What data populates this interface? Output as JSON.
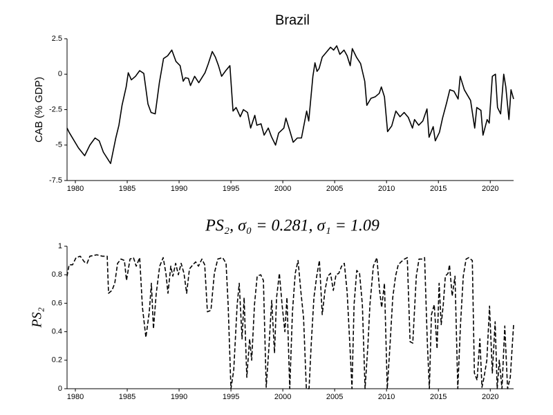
{
  "chart_data": [
    {
      "type": "line",
      "title": "Brazil",
      "ylabel": "CAB (% GDP)",
      "color": "#000000",
      "linestyle": "solid",
      "xlim": [
        1979.2,
        2022.25
      ],
      "xticks": [
        1980,
        1985,
        1990,
        1995,
        2000,
        2005,
        2010,
        2015,
        2020
      ],
      "ylim": [
        -7.5,
        2.5
      ],
      "yticks": [
        2.5,
        0,
        -2.5,
        -5,
        -7.5
      ],
      "x": [
        1979.2,
        1979.4,
        1980.3,
        1980.9,
        1981.4,
        1981.9,
        1982.3,
        1982.7,
        1983.4,
        1983.9,
        1984.2,
        1984.5,
        1984.9,
        1985.1,
        1985.4,
        1985.8,
        1986.2,
        1986.6,
        1987.0,
        1987.3,
        1987.7,
        1988.1,
        1988.5,
        1988.9,
        1989.3,
        1989.7,
        1990.1,
        1990.4,
        1990.6,
        1990.9,
        1991.1,
        1991.5,
        1991.9,
        1992.5,
        1992.8,
        1993.2,
        1993.5,
        1993.8,
        1994.1,
        1994.5,
        1994.9,
        1995.2,
        1995.5,
        1995.9,
        1996.2,
        1996.6,
        1996.9,
        1997.3,
        1997.5,
        1997.9,
        1998.2,
        1998.6,
        1998.9,
        1999.3,
        1999.6,
        2000.1,
        2000.3,
        2000.7,
        2001.0,
        2001.4,
        2001.8,
        2002.3,
        2002.5,
        2002.9,
        2003.1,
        2003.3,
        2003.5,
        2003.8,
        2004.2,
        2004.6,
        2004.9,
        2005.2,
        2005.5,
        2005.9,
        2006.2,
        2006.5,
        2006.7,
        2007.1,
        2007.5,
        2007.9,
        2008.1,
        2008.5,
        2008.9,
        2009.3,
        2009.5,
        2009.8,
        2010.1,
        2010.5,
        2010.9,
        2011.3,
        2011.7,
        2012.1,
        2012.5,
        2012.7,
        2013.1,
        2013.5,
        2013.9,
        2014.1,
        2014.5,
        2014.7,
        2015.1,
        2015.4,
        2015.8,
        2016.1,
        2016.5,
        2016.9,
        2017.1,
        2017.5,
        2017.9,
        2018.1,
        2018.5,
        2018.7,
        2019.1,
        2019.3,
        2019.7,
        2019.9,
        2020.2,
        2020.5,
        2020.7,
        2021.0,
        2021.3,
        2021.5,
        2021.8,
        2022.0,
        2022.25
      ],
      "values": [
        -3.8,
        -4.1,
        -5.2,
        -5.75,
        -5.0,
        -4.5,
        -4.7,
        -5.5,
        -6.3,
        -4.5,
        -3.6,
        -2.2,
        -0.9,
        0.1,
        -0.4,
        -0.15,
        0.25,
        0.05,
        -2.1,
        -2.7,
        -2.8,
        -0.6,
        1.1,
        1.3,
        1.7,
        0.9,
        0.6,
        -0.5,
        -0.25,
        -0.3,
        -0.8,
        -0.15,
        -0.6,
        0.1,
        0.7,
        1.6,
        1.2,
        0.6,
        -0.15,
        0.25,
        0.6,
        -2.6,
        -2.35,
        -3.0,
        -2.5,
        -2.7,
        -3.8,
        -2.9,
        -3.6,
        -3.5,
        -4.3,
        -3.8,
        -4.4,
        -5.0,
        -4.15,
        -3.8,
        -3.1,
        -4.05,
        -4.8,
        -4.5,
        -4.5,
        -2.6,
        -3.3,
        -0.15,
        0.8,
        0.2,
        0.4,
        1.2,
        1.55,
        1.9,
        1.7,
        2.0,
        1.4,
        1.7,
        1.3,
        0.6,
        1.8,
        1.2,
        0.75,
        -0.5,
        -2.2,
        -1.7,
        -1.6,
        -1.35,
        -0.9,
        -1.6,
        -4.05,
        -3.65,
        -2.6,
        -3.0,
        -2.7,
        -3.05,
        -3.8,
        -3.2,
        -3.6,
        -3.3,
        -2.45,
        -4.45,
        -3.7,
        -4.7,
        -4.1,
        -3.1,
        -2.0,
        -1.1,
        -1.2,
        -1.75,
        -0.15,
        -1.1,
        -1.6,
        -1.85,
        -3.8,
        -2.35,
        -2.55,
        -4.3,
        -3.2,
        -3.45,
        -0.15,
        0,
        -2.35,
        -2.8,
        0,
        -0.9,
        -3.2,
        -1.1,
        -1.75
      ]
    },
    {
      "type": "line",
      "title": "PS₂, σ₀ = 0.281, σ₁ = 1.09",
      "ylabel": "PS₂",
      "color": "#000000",
      "linestyle": "dashed",
      "xlim": [
        1979.2,
        2022.25
      ],
      "xticks": [
        1980,
        1985,
        1990,
        1995,
        2000,
        2005,
        2010,
        2015,
        2020
      ],
      "ylim": [
        0,
        1
      ],
      "yticks": [
        0,
        0.2,
        0.4,
        0.6,
        0.8,
        1
      ],
      "x": [
        1979.2,
        1979.4,
        1979.73,
        1980.07,
        1980.47,
        1980.87,
        1981.13,
        1981.4,
        1982.07,
        1982.6,
        1983.07,
        1983.2,
        1983.53,
        1983.8,
        1984.07,
        1984.4,
        1984.73,
        1984.93,
        1985.27,
        1985.6,
        1985.87,
        1986.2,
        1986.47,
        1986.8,
        1987.13,
        1987.33,
        1987.53,
        1987.8,
        1988.13,
        1988.47,
        1988.73,
        1988.93,
        1989.2,
        1989.4,
        1989.67,
        1989.93,
        1990.2,
        1990.47,
        1990.73,
        1991.0,
        1991.33,
        1991.6,
        1991.87,
        1992.2,
        1992.47,
        1992.73,
        1993.07,
        1993.4,
        1993.73,
        1994.2,
        1994.53,
        1994.73,
        1995.0,
        1995.27,
        1995.6,
        1995.8,
        1996.07,
        1996.27,
        1996.53,
        1996.8,
        1997.0,
        1997.27,
        1997.53,
        1997.87,
        1998.13,
        1998.4,
        1998.67,
        1998.93,
        1999.2,
        1999.4,
        1999.67,
        1999.93,
        2000.2,
        2000.4,
        2000.67,
        2000.93,
        2001.2,
        2001.47,
        2001.73,
        2002.0,
        2002.27,
        2002.53,
        2002.73,
        2003.0,
        2003.27,
        2003.53,
        2003.8,
        2004.07,
        2004.33,
        2004.6,
        2004.87,
        2005.13,
        2005.4,
        2005.67,
        2005.93,
        2006.2,
        2006.47,
        2006.67,
        2006.87,
        2007.13,
        2007.4,
        2007.67,
        2007.93,
        2008.2,
        2008.4,
        2008.73,
        2009.07,
        2009.33,
        2009.53,
        2009.8,
        2010.07,
        2010.33,
        2010.6,
        2010.87,
        2011.13,
        2011.4,
        2011.73,
        2012.0,
        2012.27,
        2012.53,
        2012.87,
        2013.13,
        2013.4,
        2013.67,
        2013.93,
        2014.13,
        2014.33,
        2014.6,
        2014.87,
        2015.07,
        2015.27,
        2015.47,
        2015.67,
        2015.93,
        2016.07,
        2016.33,
        2016.6,
        2016.87,
        2017.13,
        2017.4,
        2017.67,
        2017.93,
        2018.27,
        2018.47,
        2018.73,
        2019.0,
        2019.2,
        2019.4,
        2019.67,
        2019.93,
        2020.2,
        2020.47,
        2020.67,
        2020.87,
        2021.13,
        2021.4,
        2021.67,
        2021.93,
        2022.25
      ],
      "values": [
        0.79,
        0.87,
        0.87,
        0.92,
        0.93,
        0.89,
        0.88,
        0.93,
        0.94,
        0.93,
        0.93,
        0.67,
        0.69,
        0.74,
        0.88,
        0.91,
        0.9,
        0.76,
        0.91,
        0.92,
        0.86,
        0.92,
        0.57,
        0.36,
        0.54,
        0.74,
        0.42,
        0.67,
        0.86,
        0.92,
        0.81,
        0.67,
        0.86,
        0.79,
        0.88,
        0.8,
        0.88,
        0.81,
        0.67,
        0.84,
        0.87,
        0.89,
        0.86,
        0.91,
        0.87,
        0.54,
        0.55,
        0.81,
        0.91,
        0.92,
        0.88,
        0.59,
        0,
        0.13,
        0.59,
        0.74,
        0.35,
        0.64,
        0.08,
        0.35,
        0.2,
        0.59,
        0.79,
        0.8,
        0.76,
        0.01,
        0.3,
        0.62,
        0.25,
        0.64,
        0.81,
        0.59,
        0.4,
        0.64,
        0,
        0.54,
        0.81,
        0.9,
        0.69,
        0.5,
        0,
        0,
        0.3,
        0.64,
        0.79,
        0.9,
        0.52,
        0.69,
        0.79,
        0.81,
        0.69,
        0.8,
        0.81,
        0.86,
        0.88,
        0.68,
        0.3,
        0,
        0.59,
        0.83,
        0.81,
        0.59,
        0,
        0.3,
        0.59,
        0.86,
        0.92,
        0.69,
        0.57,
        0.74,
        0,
        0.3,
        0.64,
        0.79,
        0.87,
        0.89,
        0.91,
        0.92,
        0.33,
        0.32,
        0.79,
        0.91,
        0.91,
        0.92,
        0.33,
        0,
        0.52,
        0.59,
        0.28,
        0.74,
        0.45,
        0.59,
        0.79,
        0.81,
        0.87,
        0.65,
        0.79,
        0,
        0.45,
        0.79,
        0.91,
        0.92,
        0.9,
        0.11,
        0.06,
        0.35,
        0.01,
        0.08,
        0.2,
        0.58,
        0.11,
        0.47,
        0,
        0.2,
        0,
        0.44,
        0,
        0.08,
        0.45
      ]
    }
  ]
}
